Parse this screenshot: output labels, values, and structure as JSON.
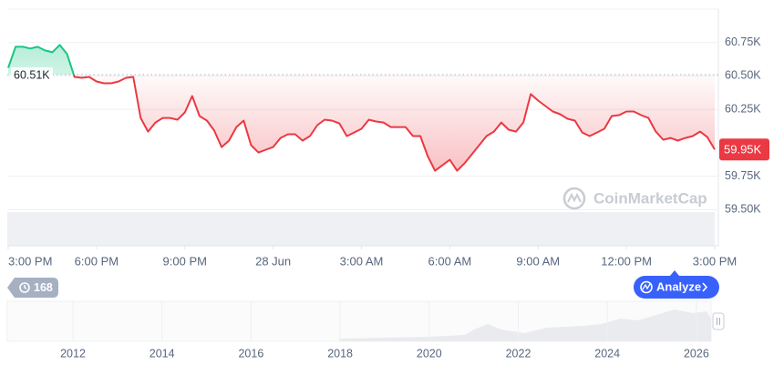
{
  "chart_data": {
    "type": "line",
    "x": [
      0,
      0.25,
      0.5,
      0.75,
      1,
      1.25,
      1.5,
      1.75,
      2,
      2.25,
      2.5,
      2.75,
      3,
      3.25,
      3.5,
      3.75,
      4,
      4.25,
      4.5,
      4.75,
      5,
      5.25,
      5.5,
      5.75,
      6,
      6.25,
      6.5,
      6.75,
      7,
      7.25,
      7.5,
      7.75,
      8,
      8.25,
      8.5,
      8.75,
      9,
      9.25,
      9.5,
      9.75,
      10,
      10.25,
      10.5,
      10.75,
      11,
      11.25,
      11.5,
      11.75,
      12,
      12.25,
      12.5,
      12.75,
      13,
      13.25,
      13.5,
      13.75,
      14,
      14.25,
      14.5,
      14.75,
      15,
      15.25,
      15.5,
      15.75,
      16,
      16.25,
      16.5,
      16.75,
      17,
      17.25,
      17.5,
      17.75,
      18,
      18.25,
      18.5,
      18.75,
      19,
      19.25,
      19.5,
      19.75,
      20,
      20.25,
      20.5,
      20.75,
      21,
      21.25,
      21.5,
      21.75,
      22,
      22.25,
      22.5,
      22.75,
      23,
      23.25,
      23.5,
      23.75,
      24
    ],
    "values": [
      60561,
      60718,
      60718,
      60705,
      60718,
      60691,
      60677,
      60732,
      60664,
      60493,
      60486,
      60493,
      60459,
      60445,
      60445,
      60459,
      60486,
      60493,
      60186,
      60084,
      60152,
      60186,
      60186,
      60173,
      60227,
      60350,
      60200,
      60166,
      60091,
      59968,
      60016,
      60118,
      60166,
      59982,
      59927,
      59948,
      59968,
      60036,
      60064,
      60064,
      60016,
      60050,
      60132,
      60173,
      60166,
      60145,
      60050,
      60077,
      60105,
      60173,
      60159,
      60152,
      60118,
      60118,
      60118,
      60050,
      60050,
      59900,
      59791,
      59832,
      59873,
      59791,
      59846,
      59914,
      59982,
      60050,
      60084,
      60152,
      60098,
      60084,
      60152,
      60364,
      60316,
      60275,
      60234,
      60214,
      60180,
      60166,
      60077,
      60050,
      60077,
      60105,
      60200,
      60207,
      60234,
      60234,
      60207,
      60186,
      60084,
      60023,
      60036,
      60016,
      60036,
      60050,
      60084,
      60043,
      59950
    ],
    "up_color": "#16c784",
    "down_color": "#ea3943",
    "baseline": {
      "value": 60510,
      "label": "60.51K"
    },
    "price_marker": {
      "value": 59950,
      "label": "59.95K"
    },
    "xlim": [
      0,
      24
    ],
    "xticks": [
      {
        "value": 0,
        "label": "3:00 PM"
      },
      {
        "value": 3,
        "label": "6:00 PM"
      },
      {
        "value": 6,
        "label": "9:00 PM"
      },
      {
        "value": 9,
        "label": "28 Jun"
      },
      {
        "value": 12,
        "label": "3:00 AM"
      },
      {
        "value": 15,
        "label": "6:00 AM"
      },
      {
        "value": 18,
        "label": "9:00 AM"
      },
      {
        "value": 21,
        "label": "12:00 PM"
      },
      {
        "value": 24,
        "label": "3:00 PM"
      }
    ],
    "ylim": [
      59230,
      61000
    ],
    "yticks": [
      {
        "value": 59500,
        "label": "59.50K"
      },
      {
        "value": 59750,
        "label": "59.75K"
      },
      {
        "value": 60250,
        "label": "60.25K"
      },
      {
        "value": 60500,
        "label": "60.50K"
      },
      {
        "value": 60750,
        "label": "60.75K"
      }
    ],
    "grid": true
  },
  "watermark": "CoinMarketCap",
  "history_button": "168",
  "analyze_button": "Analyze",
  "navigator": {
    "years": [
      "2012",
      "2014",
      "2016",
      "2018",
      "2020",
      "2022",
      "2024",
      "2026"
    ]
  }
}
